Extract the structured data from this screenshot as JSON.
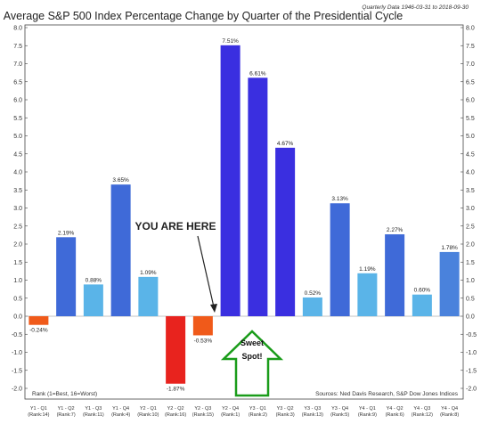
{
  "chart_data": {
    "type": "bar",
    "title": "Average S&P 500 Index Percentage Change by Quarter of the Presidential Cycle",
    "subtitle": "Quarterly Data 1946-03-31 to 2018-09-30",
    "ylim": [
      -2.0,
      8.0
    ],
    "yticks": [
      "8.0",
      "7.5",
      "7.0",
      "6.5",
      "6.0",
      "5.5",
      "5.0",
      "4.5",
      "4.0",
      "3.5",
      "3.0",
      "2.5",
      "2.0",
      "1.5",
      "1.0",
      "0.5",
      "0.0",
      "-0.5",
      "-1.0",
      "-1.5",
      "-2.0"
    ],
    "grid": false,
    "categories": [
      {
        "q": "Y1 - Q1",
        "rank": "(Rank:14)"
      },
      {
        "q": "Y1 - Q2",
        "rank": "(Rank:7)"
      },
      {
        "q": "Y1 - Q3",
        "rank": "(Rank:11)"
      },
      {
        "q": "Y1 - Q4",
        "rank": "(Rank:4)"
      },
      {
        "q": "Y2 - Q1",
        "rank": "(Rank:10)"
      },
      {
        "q": "Y2 - Q2",
        "rank": "(Rank:16)"
      },
      {
        "q": "Y2 - Q3",
        "rank": "(Rank:15)"
      },
      {
        "q": "Y2 - Q4",
        "rank": "(Rank:1)"
      },
      {
        "q": "Y3 - Q1",
        "rank": "(Rank:2)"
      },
      {
        "q": "Y3 - Q2",
        "rank": "(Rank:3)"
      },
      {
        "q": "Y3 - Q3",
        "rank": "(Rank:13)"
      },
      {
        "q": "Y3 - Q4",
        "rank": "(Rank:5)"
      },
      {
        "q": "Y4 - Q1",
        "rank": "(Rank:9)"
      },
      {
        "q": "Y4 - Q2",
        "rank": "(Rank:6)"
      },
      {
        "q": "Y4 - Q3",
        "rank": "(Rank:12)"
      },
      {
        "q": "Y4 - Q4",
        "rank": "(Rank:8)"
      }
    ],
    "values": [
      -0.24,
      2.19,
      0.88,
      3.65,
      1.09,
      -1.87,
      -0.53,
      7.51,
      6.61,
      4.67,
      0.52,
      3.13,
      1.19,
      2.27,
      0.6,
      1.78
    ],
    "value_labels": [
      "-0.24%",
      "2.19%",
      "0.88%",
      "3.65%",
      "1.09%",
      "-1.87%",
      "-0.53%",
      "7.51%",
      "6.61%",
      "4.67%",
      "0.52%",
      "3.13%",
      "1.19%",
      "2.27%",
      "0.60%",
      "1.78%"
    ],
    "bar_colors": [
      "#f05a1a",
      "#3f6ad8",
      "#5ab4e8",
      "#3f6ad8",
      "#5ab4e8",
      "#e8231e",
      "#f05a1a",
      "#3a2fe0",
      "#3a2fe0",
      "#3a2fe0",
      "#5ab4e8",
      "#3f6ad8",
      "#5ab4e8",
      "#3f6ad8",
      "#5ab4e8",
      "#4a82dc"
    ],
    "annotations": {
      "you_are_here": "YOU ARE HERE",
      "sweet_spot_line1": "Sweet",
      "sweet_spot_line2": "Spot!",
      "rank_note": "Rank (1=Best, 16=Worst)",
      "sources": "Sources: Ned Davis Research, S&P Dow Jones Indices",
      "arrow_color": "#1a9c1a"
    }
  }
}
